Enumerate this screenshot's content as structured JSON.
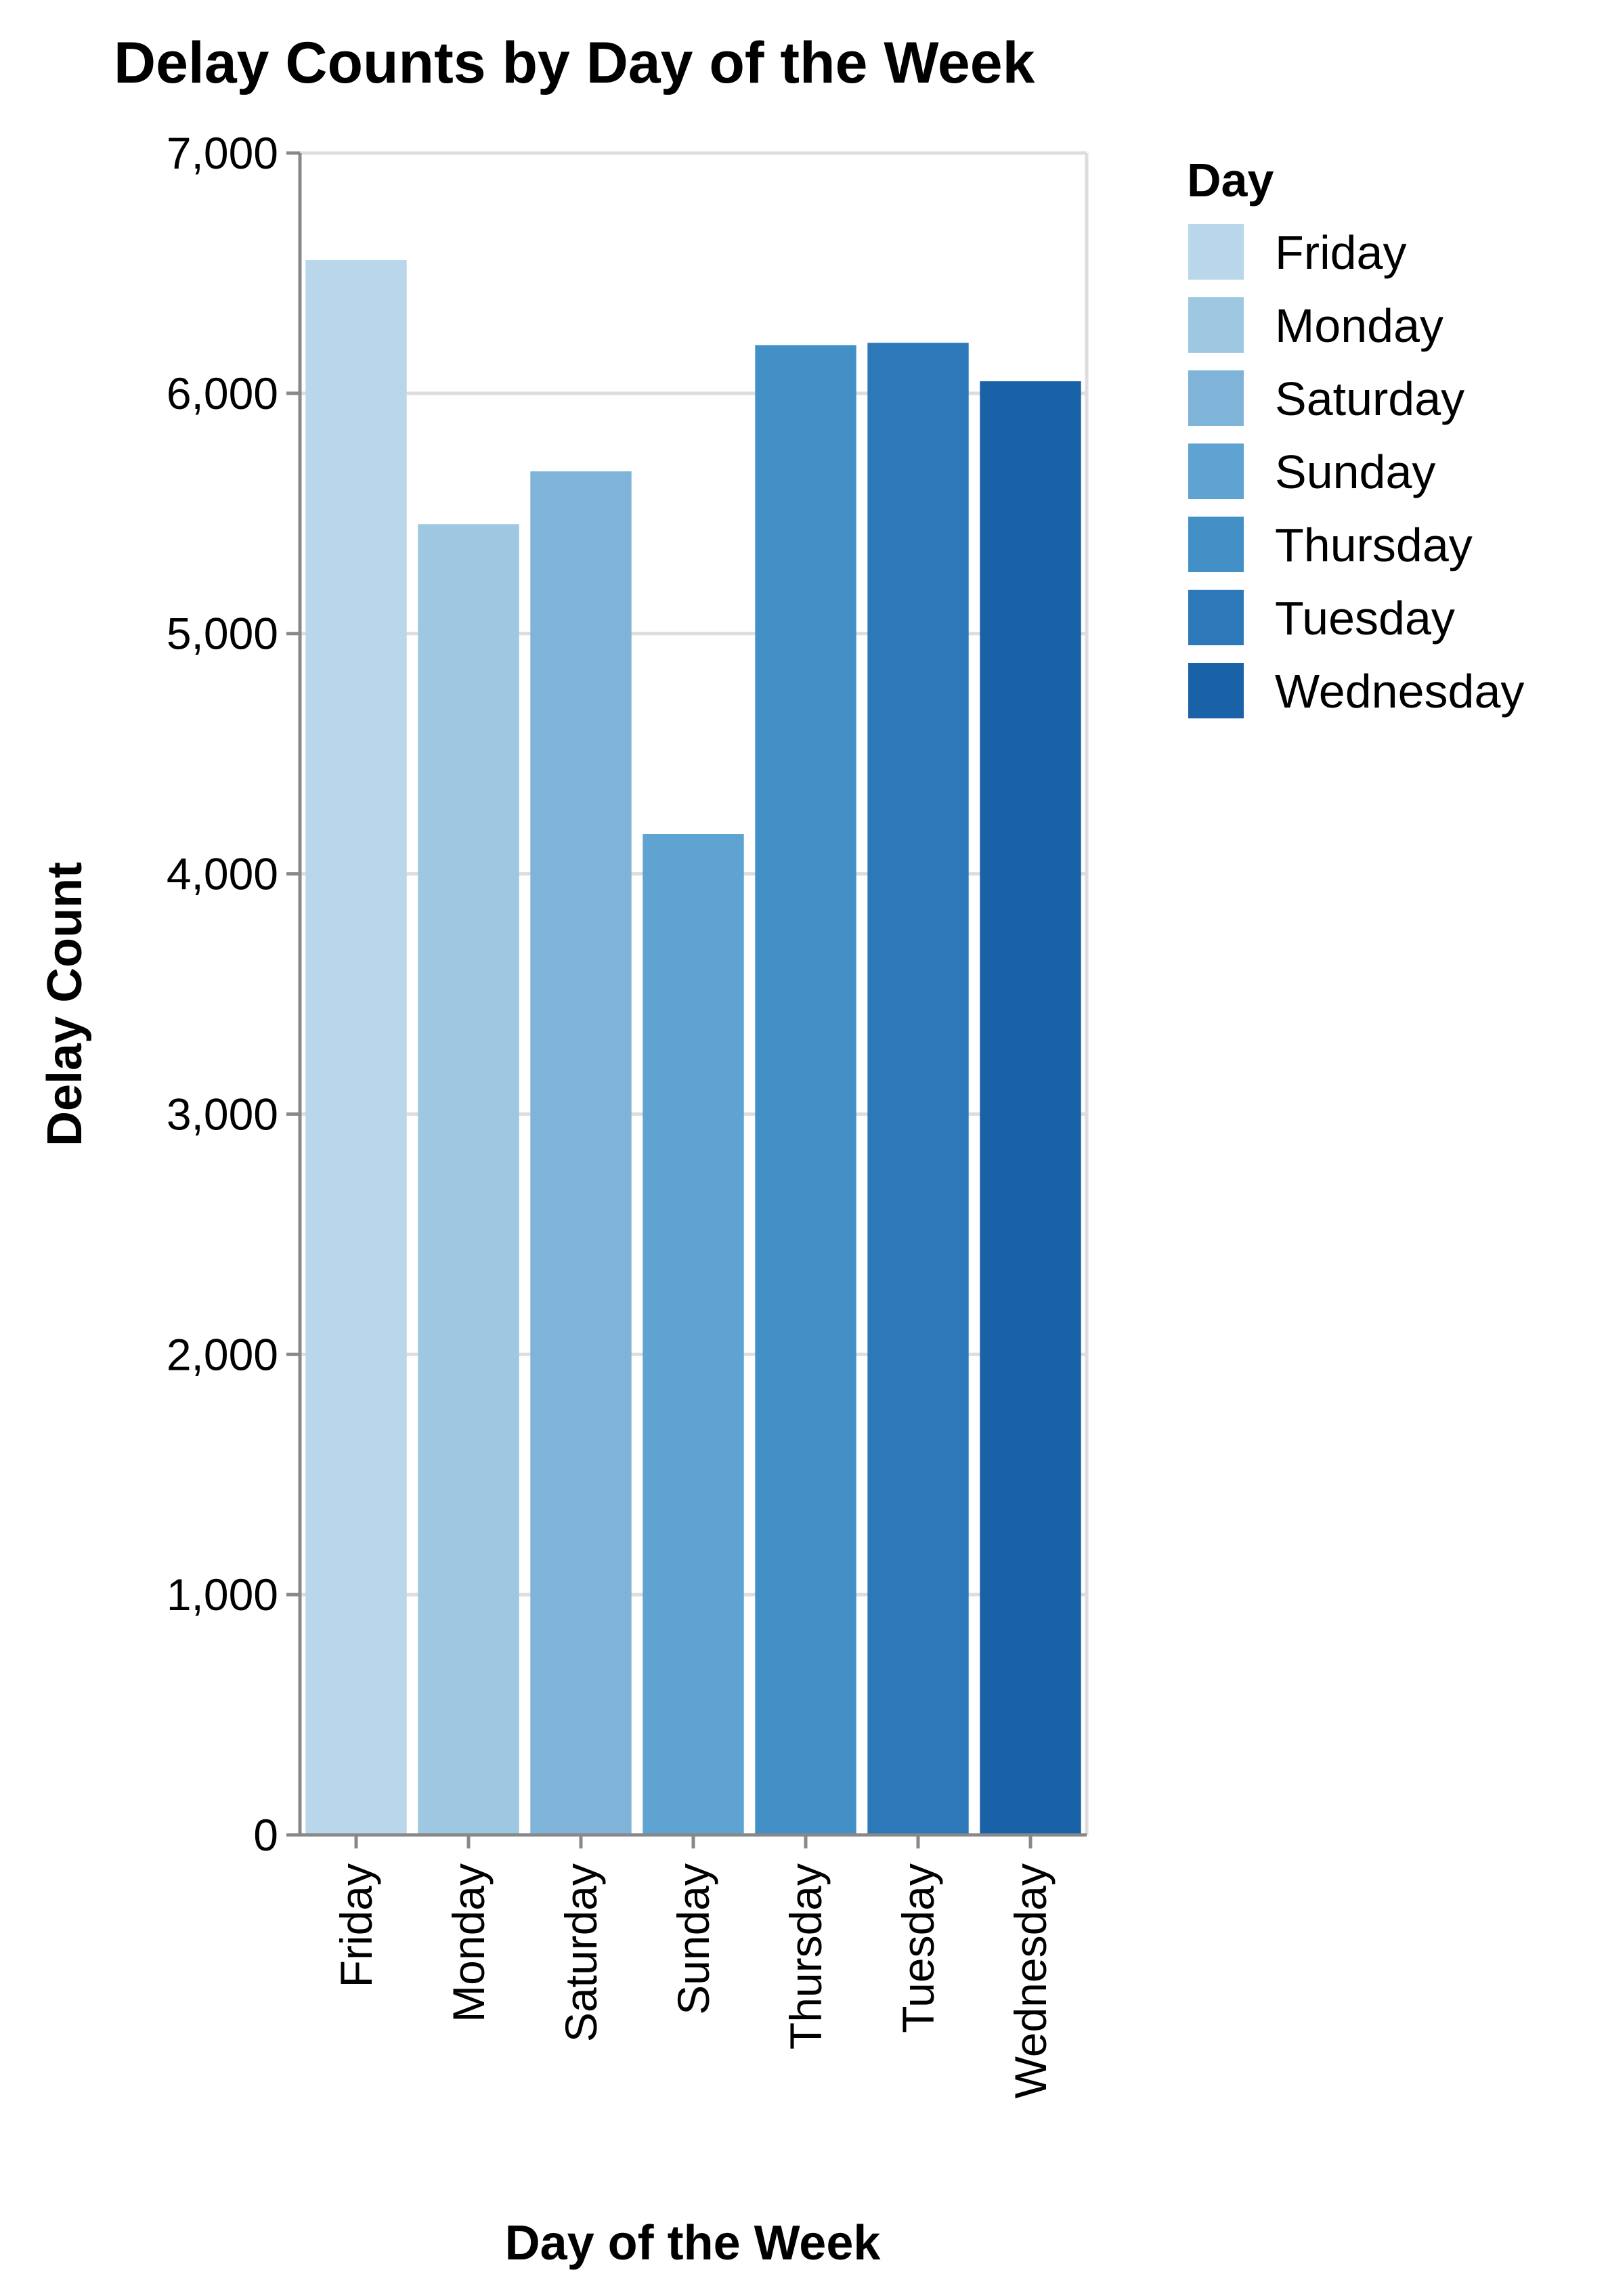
{
  "chart_data": {
    "type": "bar",
    "title": "Delay Counts by Day of the Week",
    "xlabel": "Day of the Week",
    "ylabel": "Delay Count",
    "categories": [
      "Friday",
      "Monday",
      "Saturday",
      "Sunday",
      "Thursday",
      "Tuesday",
      "Wednesday"
    ],
    "values": [
      6555,
      5455,
      5675,
      4165,
      6200,
      6210,
      6050
    ],
    "colors": [
      "#bad6ea",
      "#9ec8e1",
      "#7fb4d8",
      "#5ea3d1",
      "#4390c7",
      "#2c78b9",
      "#1a62a8"
    ],
    "ylim": [
      0,
      7000
    ],
    "yticks": [
      0,
      1000,
      2000,
      3000,
      4000,
      5000,
      6000,
      7000
    ],
    "ytick_labels": [
      "0",
      "1,000",
      "2,000",
      "3,000",
      "4,000",
      "5,000",
      "6,000",
      "7,000"
    ],
    "grid": true,
    "legend": {
      "title": "Day",
      "placement": "right",
      "items": [
        "Friday",
        "Monday",
        "Saturday",
        "Sunday",
        "Thursday",
        "Tuesday",
        "Wednesday"
      ]
    }
  }
}
